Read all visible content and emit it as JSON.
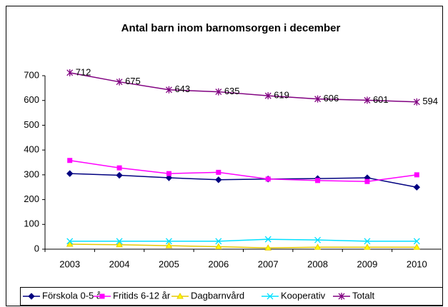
{
  "chart_data": {
    "type": "line",
    "title": "Antal barn inom barnomsorgen i december",
    "categories": [
      "2003",
      "2004",
      "2005",
      "2006",
      "2007",
      "2008",
      "2009",
      "2010"
    ],
    "ylim": [
      0,
      700
    ],
    "yticks": [
      0,
      100,
      200,
      300,
      400,
      500,
      600,
      700
    ],
    "grid": false,
    "legend": "bottom",
    "series": [
      {
        "name": "Förskola 0-5 år",
        "color": "#000080",
        "marker": "diamond",
        "values": [
          305,
          298,
          288,
          280,
          283,
          285,
          288,
          250
        ]
      },
      {
        "name": "Fritids 6-12 år",
        "color": "#ff00ff",
        "marker": "square",
        "values": [
          358,
          328,
          305,
          310,
          283,
          277,
          273,
          300
        ]
      },
      {
        "name": "Dagbarnvård",
        "color": "#e6c800",
        "marker": "triangle",
        "values": [
          20,
          18,
          14,
          10,
          5,
          8,
          8,
          8
        ]
      },
      {
        "name": "Kooperativ",
        "color": "#00e0ff",
        "marker": "x",
        "values": [
          32,
          32,
          32,
          32,
          40,
          37,
          32,
          32
        ]
      },
      {
        "name": "Totalt",
        "color": "#800080",
        "marker": "star",
        "labels": true,
        "values": [
          712,
          675,
          643,
          635,
          619,
          606,
          601,
          594
        ]
      }
    ]
  }
}
